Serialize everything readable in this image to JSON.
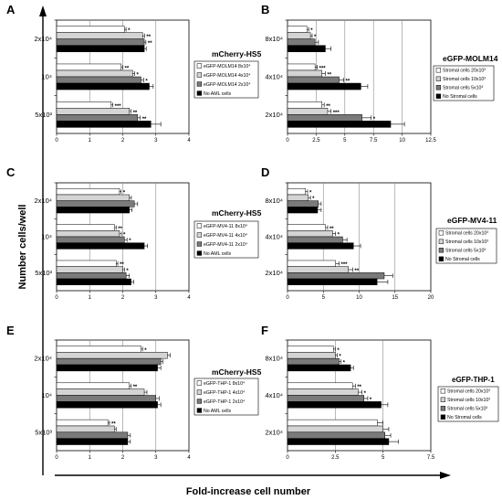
{
  "figure": {
    "y_axis_title": "Number cells/well",
    "x_axis_title": "Fold-increase cell number"
  },
  "colors": {
    "light": "#ffffff",
    "lightgray": "#d4d4d4",
    "darkgray": "#7a7a7a",
    "black": "#000000"
  },
  "chart_data": [
    {
      "panel": "A",
      "type": "bar",
      "orientation": "horizontal",
      "title": "mCherry-HS5",
      "categories": [
        "2x10⁴",
        "10⁴",
        "5x10³"
      ],
      "xlim": [
        0,
        4
      ],
      "xticks": [
        "0",
        "1",
        "2",
        "3",
        "4"
      ],
      "series": [
        {
          "name": "eGFP-MOLM14   8x10⁴",
          "fill": "light",
          "values": [
            2.05,
            1.95,
            1.65
          ],
          "errors": [
            0.05,
            0.05,
            0.05
          ]
        },
        {
          "name": "eGFP-MOLM14   4x10⁴",
          "fill": "lightgray",
          "values": [
            2.6,
            2.3,
            2.2
          ],
          "errors": [
            0.06,
            0.06,
            0.05
          ]
        },
        {
          "name": "eGFP-MOLM14   2x10⁴",
          "fill": "darkgray",
          "values": [
            2.65,
            2.55,
            2.45
          ],
          "errors": [
            0.05,
            0.08,
            0.08
          ]
        },
        {
          "name": "No AML cells",
          "fill": "black",
          "values": [
            2.65,
            2.8,
            2.85
          ],
          "errors": [
            0.06,
            0.12,
            0.3
          ]
        }
      ],
      "stars": [
        [
          "*",
          "**",
          "**",
          ""
        ],
        [
          "**",
          "*",
          "*",
          ""
        ],
        [
          "***",
          "**",
          "**",
          ""
        ]
      ]
    },
    {
      "panel": "B",
      "type": "bar",
      "orientation": "horizontal",
      "title": "eGFP-MOLM14",
      "categories": [
        "8x10⁴",
        "4x10⁴",
        "2x10⁴"
      ],
      "xlim": [
        0,
        12.5
      ],
      "xticks": [
        "0",
        "2.5",
        "5",
        "7.5",
        "10",
        "12.5"
      ],
      "series": [
        {
          "name": "Stromal cells  20x10³",
          "fill": "light",
          "values": [
            1.7,
            2.4,
            3.0
          ],
          "errors": [
            0.15,
            0.2,
            0.2
          ]
        },
        {
          "name": "Stromal cells  10x10³",
          "fill": "lightgray",
          "values": [
            2.0,
            3.0,
            3.5
          ],
          "errors": [
            0.15,
            0.3,
            0.3
          ]
        },
        {
          "name": "Stromal cells   5x10³",
          "fill": "darkgray",
          "values": [
            2.4,
            4.5,
            6.5
          ],
          "errors": [
            0.3,
            0.4,
            0.8
          ]
        },
        {
          "name": "No Stromal cells",
          "fill": "black",
          "values": [
            3.3,
            6.4,
            9.0
          ],
          "errors": [
            0.5,
            0.6,
            1.2
          ]
        }
      ],
      "stars": [
        [
          "*",
          "*",
          "",
          ""
        ],
        [
          "***",
          "**",
          "**",
          ""
        ],
        [
          "**",
          "***",
          "*",
          ""
        ]
      ]
    },
    {
      "panel": "C",
      "type": "bar",
      "orientation": "horizontal",
      "title": "mCherry-HS5",
      "categories": [
        "2x10⁴",
        "10⁴",
        "5x10³"
      ],
      "xlim": [
        0,
        4
      ],
      "xticks": [
        "0",
        "1",
        "2",
        "3",
        "4"
      ],
      "series": [
        {
          "name": "eGFP-MV4-11    8x10⁴",
          "fill": "light",
          "values": [
            1.9,
            1.75,
            1.8
          ],
          "errors": [
            0.05,
            0.05,
            0.05
          ]
        },
        {
          "name": "eGFP-MV4-11    4x10⁴",
          "fill": "lightgray",
          "values": [
            2.2,
            1.9,
            2.0
          ],
          "errors": [
            0.06,
            0.06,
            0.05
          ]
        },
        {
          "name": "eGFP-MV4-11    2x10⁴",
          "fill": "darkgray",
          "values": [
            2.35,
            2.05,
            2.1
          ],
          "errors": [
            0.1,
            0.08,
            0.1
          ]
        },
        {
          "name": "No AML cells",
          "fill": "black",
          "values": [
            2.2,
            2.65,
            2.25
          ],
          "errors": [
            0.08,
            0.1,
            0.08
          ]
        }
      ],
      "stars": [
        [
          "*",
          "",
          "",
          ""
        ],
        [
          "**",
          "*",
          "*",
          ""
        ],
        [
          "**",
          "*",
          "",
          ""
        ]
      ]
    },
    {
      "panel": "D",
      "type": "bar",
      "orientation": "horizontal",
      "title": "eGFP-MV4-11",
      "categories": [
        "8x10⁴",
        "4x10⁴",
        "2x10⁴"
      ],
      "xlim": [
        0,
        20
      ],
      "xticks": [
        "0",
        "5",
        "10",
        "15",
        "20"
      ],
      "series": [
        {
          "name": "Stromal cells  20x10³",
          "fill": "light",
          "values": [
            2.5,
            5.3,
            6.7
          ],
          "errors": [
            0.3,
            0.3,
            0.5
          ]
        },
        {
          "name": "Stromal cells  10x10³",
          "fill": "lightgray",
          "values": [
            2.9,
            6.3,
            8.5
          ],
          "errors": [
            0.3,
            0.4,
            0.6
          ]
        },
        {
          "name": "Stromal cells   5x10³",
          "fill": "darkgray",
          "values": [
            4.3,
            7.7,
            13.5
          ],
          "errors": [
            0.4,
            0.6,
            1.2
          ]
        },
        {
          "name": "No Stromal cells",
          "fill": "black",
          "values": [
            4.2,
            9.2,
            12.5
          ],
          "errors": [
            0.5,
            1.0,
            1.5
          ]
        }
      ],
      "stars": [
        [
          "*",
          "*",
          "",
          ""
        ],
        [
          "**",
          "*",
          "",
          ""
        ],
        [
          "***",
          "**",
          "",
          ""
        ]
      ]
    },
    {
      "panel": "E",
      "type": "bar",
      "orientation": "horizontal",
      "title": "mCherry-HS5",
      "categories": [
        "2x10⁴",
        "10⁴",
        "5x10³"
      ],
      "xlim": [
        0,
        4
      ],
      "xticks": [
        "0",
        "1",
        "2",
        "3",
        "4"
      ],
      "series": [
        {
          "name": "eGFP-THP-1   8x10⁴",
          "fill": "light",
          "values": [
            2.55,
            2.2,
            1.55
          ],
          "errors": [
            0.05,
            0.05,
            0.05
          ]
        },
        {
          "name": "eGFP-THP-1   4x10⁴",
          "fill": "lightgray",
          "values": [
            3.35,
            2.65,
            1.75
          ],
          "errors": [
            0.08,
            0.08,
            0.05
          ]
        },
        {
          "name": "eGFP-THP-1   2x10⁴",
          "fill": "darkgray",
          "values": [
            3.15,
            3.0,
            2.15
          ],
          "errors": [
            0.06,
            0.1,
            0.08
          ]
        },
        {
          "name": "No AML cells",
          "fill": "black",
          "values": [
            3.05,
            3.05,
            2.15
          ],
          "errors": [
            0.1,
            0.1,
            0.08
          ]
        }
      ],
      "stars": [
        [
          "*",
          "",
          "",
          ""
        ],
        [
          "**",
          "",
          "",
          ""
        ],
        [
          "**",
          "",
          "",
          ""
        ]
      ]
    },
    {
      "panel": "F",
      "type": "bar",
      "orientation": "horizontal",
      "title": "eGFP-THP-1",
      "categories": [
        "8x10⁴",
        "4x10⁴",
        "2x10⁴"
      ],
      "xlim": [
        0,
        7.5
      ],
      "xticks": [
        "0",
        "2.5",
        "5",
        "7.5"
      ],
      "series": [
        {
          "name": "Stromal cells  20x10³",
          "fill": "light",
          "values": [
            2.4,
            3.4,
            4.7
          ],
          "errors": [
            0.1,
            0.15,
            0.3
          ]
        },
        {
          "name": "Stromal cells  10x10³",
          "fill": "lightgray",
          "values": [
            2.5,
            3.7,
            5.0
          ],
          "errors": [
            0.1,
            0.2,
            0.3
          ]
        },
        {
          "name": "Stromal cells   5x10³",
          "fill": "darkgray",
          "values": [
            2.7,
            4.0,
            5.1
          ],
          "errors": [
            0.1,
            0.2,
            0.3
          ]
        },
        {
          "name": "No Stromal cells",
          "fill": "black",
          "values": [
            3.3,
            4.9,
            5.3
          ],
          "errors": [
            0.15,
            0.35,
            0.5
          ]
        }
      ],
      "stars": [
        [
          "*",
          "*",
          "*",
          ""
        ],
        [
          "**",
          "*",
          "*",
          ""
        ],
        [
          "",
          "",
          "",
          ""
        ]
      ]
    }
  ]
}
